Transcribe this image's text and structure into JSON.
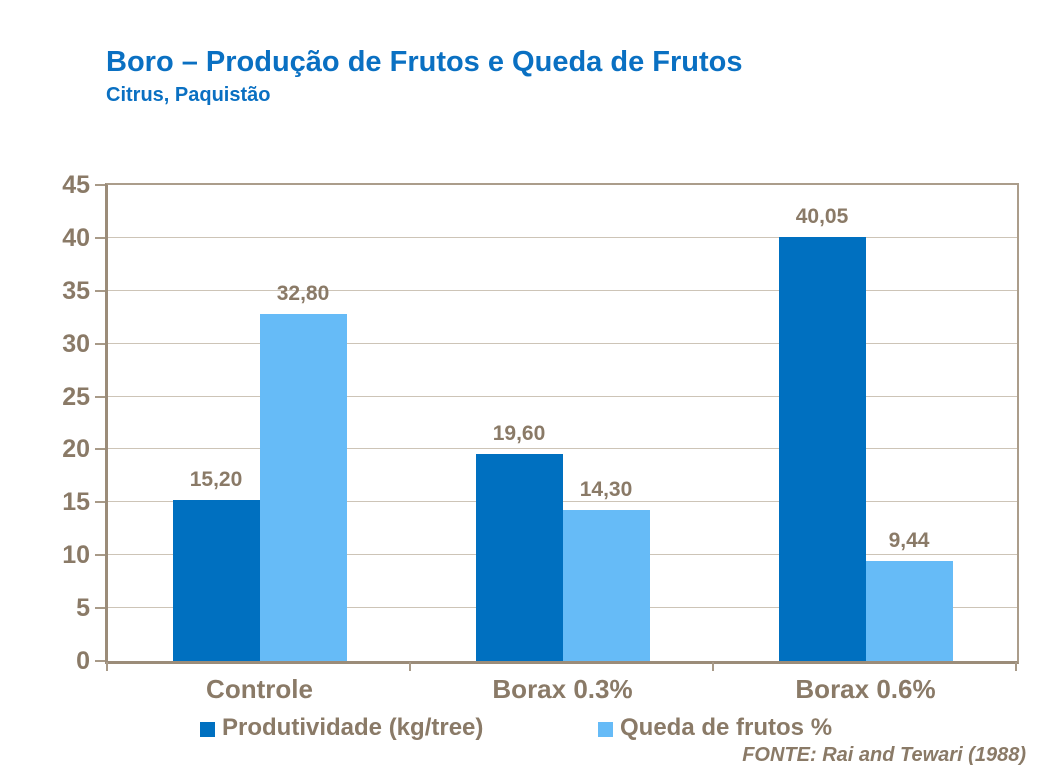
{
  "header": {
    "title": "Boro – Produção de Frutos e Queda de Frutos",
    "subtitle": "Citrus, Paquistão"
  },
  "chart_data": {
    "type": "bar",
    "title": "Boro – Produção de Frutos e Queda de Frutos",
    "subtitle": "Citrus, Paquistão",
    "categories": [
      "Controle",
      "Borax 0.3%",
      "Borax 0.6%"
    ],
    "series": [
      {
        "name": "Produtividade (kg/tree)",
        "values": [
          15.2,
          19.6,
          40.05
        ],
        "value_labels": [
          "15,20",
          "19,60",
          "40,05"
        ],
        "color": "#0070c0"
      },
      {
        "name": "Queda de frutos %",
        "values": [
          32.8,
          14.3,
          9.44
        ],
        "value_labels": [
          "32,80",
          "14,30",
          "9,44"
        ],
        "color": "#66bbf7"
      }
    ],
    "ylim": [
      0,
      45
    ],
    "y_ticks": [
      0,
      5,
      10,
      15,
      20,
      25,
      30,
      35,
      40,
      45
    ],
    "xlabel": "",
    "ylabel": "",
    "grid": "horizontal",
    "legend_position": "bottom"
  },
  "footer": {
    "source": "FONTE: Rai and Tewari (1988)"
  },
  "colors": {
    "title_blue": "#0a70c2",
    "series1_blue": "#0070c0",
    "series2_light_blue": "#66bbf7",
    "label_taupe": "#8a7a67",
    "axis_taupe": "#9b8c79",
    "gridline_taupe": "#cdc4b7"
  }
}
